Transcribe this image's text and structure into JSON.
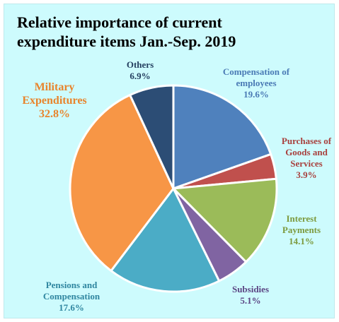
{
  "chart_data": {
    "type": "pie",
    "title": "Relative importance of current\nexpenditure  items Jan.-Sep. 2019",
    "slices": [
      {
        "label": "Compensation of employees",
        "lines": [
          "Compensation of",
          "employees"
        ],
        "value": 19.6,
        "value_text": "19.6%",
        "color": "#4f81bd",
        "label_color": "#4a7ab5"
      },
      {
        "label": "Purchases of Goods and Services",
        "lines": [
          "Purchases of",
          "Goods and",
          "Services"
        ],
        "value": 3.9,
        "value_text": "3.9%",
        "color": "#c0504d",
        "label_color": "#a8403d"
      },
      {
        "label": "Interest Payments",
        "lines": [
          "Interest",
          "Payments"
        ],
        "value": 14.1,
        "value_text": "14.1%",
        "color": "#9bbb59",
        "label_color": "#7d9a3e"
      },
      {
        "label": "Subsidies",
        "lines": [
          "Subsidies"
        ],
        "value": 5.1,
        "value_text": "5.1%",
        "color": "#8064a2",
        "label_color": "#5c4684"
      },
      {
        "label": "Pensions and Compensation",
        "lines": [
          "Pensions and",
          "Compensation"
        ],
        "value": 17.6,
        "value_text": "17.6%",
        "color": "#4bacc6",
        "label_color": "#2f86a0"
      },
      {
        "label": "Military Expenditures",
        "lines": [
          "Military",
          "Expenditures"
        ],
        "value": 32.8,
        "value_text": "32.8%",
        "color": "#f79646",
        "label_color": "#e8842c"
      },
      {
        "label": "Others",
        "lines": [
          "Others"
        ],
        "value": 6.9,
        "value_text": "6.9%",
        "color": "#2c4d75",
        "label_color": "#243f60"
      }
    ]
  }
}
